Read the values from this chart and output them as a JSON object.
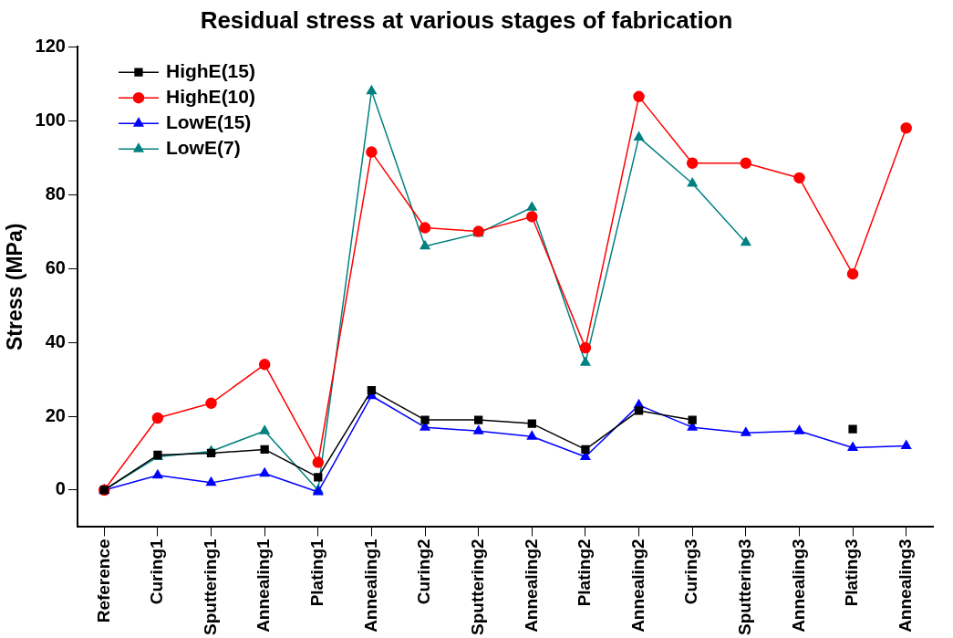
{
  "chart_data": {
    "type": "line",
    "title": "Residual stress at various stages of fabrication",
    "ylabel": "Stress (MPa)",
    "categories": [
      "Reference",
      "Curing1",
      "Sputtering1",
      "Annealing1",
      "Plating1",
      "Annealing1",
      "Curing2",
      "Sputtering2",
      "Annealing2",
      "Plating2",
      "Annealing2",
      "Curing3",
      "Sputtering3",
      "Annealing3",
      "Plating3",
      "Annealing3"
    ],
    "series": [
      {
        "name": "HighE(15)",
        "color": "#000000",
        "marker": "square",
        "values": [
          0,
          9.5,
          10,
          11,
          3.5,
          27,
          19,
          19,
          18,
          11,
          21.5,
          19,
          null,
          null,
          16.5,
          null
        ]
      },
      {
        "name": "HighE(10)",
        "color": "#ff0000",
        "marker": "circle",
        "values": [
          0,
          19.5,
          23.5,
          34,
          7.5,
          91.5,
          71,
          70,
          74,
          38.5,
          106.5,
          88.5,
          88.5,
          84.5,
          58.5,
          98
        ]
      },
      {
        "name": "LowE(15)",
        "color": "#0000ff",
        "marker": "triangle",
        "values": [
          0,
          4,
          2,
          4.5,
          -0.5,
          25.5,
          17,
          16,
          14.5,
          9,
          23,
          17,
          15.5,
          16,
          11.5,
          12
        ]
      },
      {
        "name": "LowE(7)",
        "color": "#008080",
        "marker": "triangle",
        "values": [
          0,
          9,
          10.5,
          16,
          0,
          108,
          66,
          69.5,
          76.5,
          34.5,
          95.5,
          83,
          67,
          null,
          null,
          null
        ]
      }
    ],
    "ylim": [
      -10,
      120
    ],
    "yticks": [
      0,
      20,
      40,
      60,
      80,
      100,
      120
    ],
    "grid": false,
    "legend": "top left",
    "line_style": "solid"
  }
}
